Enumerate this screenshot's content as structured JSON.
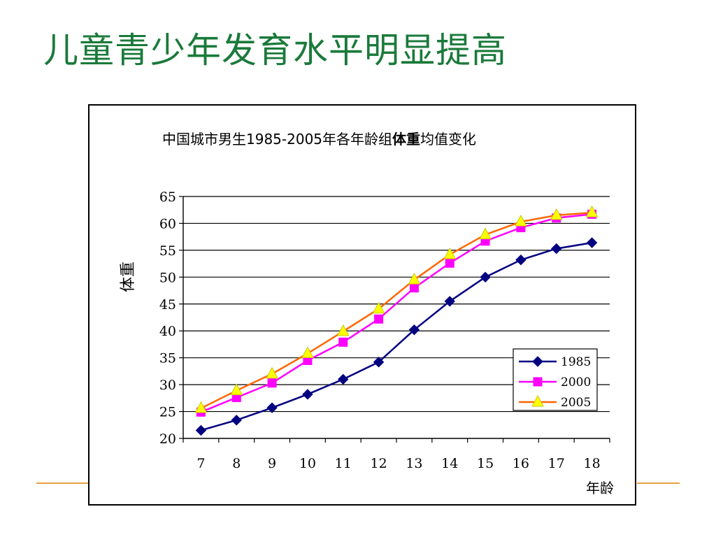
{
  "slide": {
    "title": "儿童青少年发育水平明显提高"
  },
  "colors": {
    "title": "#1a7a3a",
    "rule": "#e8a040"
  },
  "chart_data": {
    "type": "line",
    "title": {
      "prefix": "中国城市男生1985-2005年各年龄组",
      "bold": "体重",
      "suffix": "均值变化"
    },
    "xlabel": "年龄",
    "ylabel": "体重",
    "x": [
      7,
      8,
      9,
      10,
      11,
      12,
      13,
      14,
      15,
      16,
      17,
      18
    ],
    "ylim": [
      20,
      65
    ],
    "yticks": [
      20,
      25,
      30,
      35,
      40,
      45,
      50,
      55,
      60,
      65
    ],
    "grid": true,
    "legend": "bottom-right",
    "series": [
      {
        "name": "1985",
        "marker": "diamond",
        "color": "#000080",
        "values": [
          21.5,
          23.4,
          25.7,
          28.2,
          31.0,
          34.2,
          40.2,
          45.5,
          50.0,
          53.2,
          55.3,
          56.4
        ]
      },
      {
        "name": "2000",
        "marker": "square",
        "color": "#ff00ff",
        "values": [
          24.9,
          27.6,
          30.3,
          34.5,
          37.9,
          42.2,
          48.0,
          52.6,
          56.7,
          59.2,
          61.0,
          61.7
        ]
      },
      {
        "name": "2005",
        "marker": "triangle",
        "color": "#ff6600",
        "markerColor": "#ffff00",
        "values": [
          25.6,
          28.9,
          32.0,
          35.8,
          39.9,
          44.1,
          49.5,
          54.2,
          57.9,
          60.3,
          61.5,
          62.0
        ]
      }
    ]
  }
}
